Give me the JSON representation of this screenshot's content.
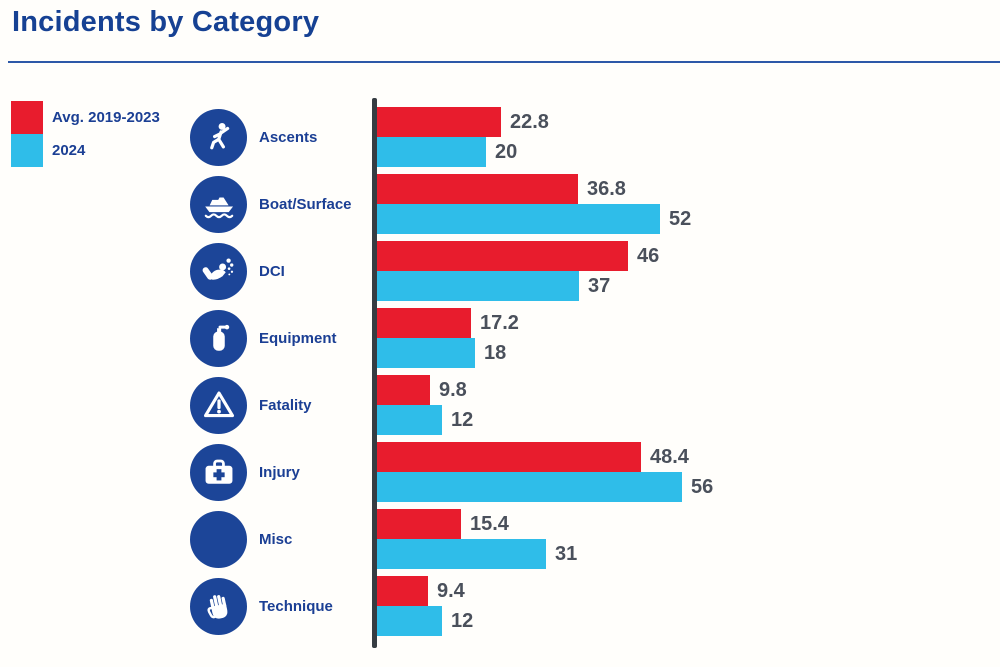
{
  "title": "Incidents by Category",
  "legend": {
    "items": [
      {
        "label": "Avg. 2019-2023",
        "color": "#e81c2d"
      },
      {
        "label": "2024",
        "color": "#2fbde9"
      }
    ]
  },
  "colors": {
    "series_red": "#e81c2d",
    "series_blue": "#2fbde9",
    "navy_icon_circle": "#1c4598",
    "navy_text": "#1b3f94",
    "title_text": "#164193",
    "axis_line": "#363c42",
    "value_text": "#4a505b",
    "title_rule": "#2d58a8"
  },
  "chart_data": {
    "type": "bar",
    "orientation": "horizontal",
    "title": "Incidents by Category",
    "categories": [
      "Ascents",
      "Boat/Surface",
      "DCI",
      "Equipment",
      "Fatality",
      "Injury",
      "Misc",
      "Technique"
    ],
    "icons": [
      "runner-icon",
      "boat-icon",
      "diver-icon",
      "scuba-tank-icon",
      "warning-triangle-icon",
      "first-aid-kit-icon",
      "circle-icon",
      "hand-icon"
    ],
    "series": [
      {
        "name": "Avg. 2019-2023",
        "color": "#e81c2d",
        "values": [
          22.8,
          36.8,
          46,
          17.2,
          9.8,
          48.4,
          15.4,
          9.4
        ]
      },
      {
        "name": "2024",
        "color": "#2fbde9",
        "values": [
          20,
          52,
          37,
          18,
          12,
          56,
          31,
          12
        ]
      }
    ],
    "value_labels_shown": true,
    "xlabel": "",
    "ylabel": "",
    "xlim": [
      0,
      60
    ],
    "grid": false,
    "legend_position": "top-left",
    "axis_style": "single dark vertical baseline, no ticks or gridlines"
  }
}
